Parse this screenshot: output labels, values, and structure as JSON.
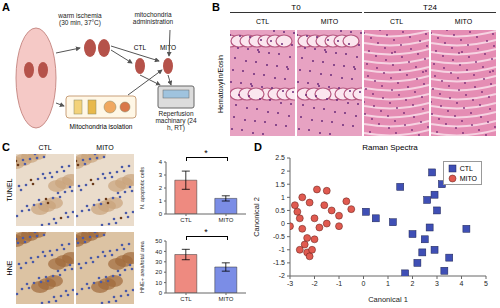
{
  "panels": [
    "A",
    "B",
    "C",
    "D"
  ],
  "diagram": {
    "ischemia": "warm ischemia (30 min, 37°C)",
    "administration": "mitochondria administration",
    "groups": [
      "CTL",
      "MITO"
    ],
    "perfusion": "Reperfusion machinary (24 h, RT)",
    "isolation": "Mitochondria isolation"
  },
  "histology": {
    "stain": "Hematoxylin/Eosin",
    "timepoints": [
      "T0",
      "T24"
    ],
    "groups": [
      "CTL",
      "MITO"
    ]
  },
  "staining": {
    "columns": [
      "CTL",
      "MITO"
    ],
    "rows": [
      "TUNEL",
      "HNE"
    ]
  },
  "chart_data": [
    {
      "type": "bar",
      "categories": [
        "CTL",
        "MITO"
      ],
      "values": [
        2.6,
        1.2
      ],
      "errors": [
        0.7,
        0.2
      ],
      "colors": [
        "#ee8a80",
        "#7b8de6"
      ],
      "ylabel": "N. apoptotic cells",
      "ylim": [
        0,
        4
      ],
      "yticks": [
        0,
        1,
        2,
        3,
        4
      ],
      "annotation": "*"
    },
    {
      "type": "bar",
      "categories": [
        "CTL",
        "MITO"
      ],
      "values": [
        37,
        25
      ],
      "errors": [
        5,
        4
      ],
      "colors": [
        "#ee8a80",
        "#7b8de6"
      ],
      "ylabel": "HNE+ area/total area",
      "ylim": [
        0,
        50
      ],
      "yticks": [
        0,
        10,
        20,
        30,
        40,
        50
      ],
      "annotation": "*"
    },
    {
      "type": "scatter",
      "title": "Raman Spectra",
      "xlabel": "Canonical 1",
      "ylabel": "Canonical 2",
      "xlim": [
        -3,
        5
      ],
      "xticks": [
        -3,
        -2,
        -1,
        0,
        1,
        2,
        3,
        4,
        5
      ],
      "ylim": [
        -2,
        2.5
      ],
      "yticks": [
        -2,
        -1.5,
        -1,
        -0.5,
        0,
        0.5,
        1,
        1.5,
        2,
        2.5
      ],
      "legend": "upper right",
      "series": [
        {
          "name": "CTL",
          "color": "#3f4fb5",
          "marker": "square",
          "x": [
            0.1,
            0.5,
            1.2,
            1.5,
            1.7,
            2.0,
            2.2,
            2.5,
            2.6,
            2.7,
            2.8,
            2.9,
            3.0,
            3.2,
            3.5,
            4.2,
            2.4,
            3.3,
            2.9
          ],
          "values": [
            0.45,
            0.2,
            0.05,
            1.4,
            -1.9,
            -0.4,
            -1.5,
            -0.6,
            0.9,
            -0.15,
            1.95,
            -1.0,
            0.5,
            1.5,
            -1.3,
            -0.2,
            -1.1,
            -1.8,
            1.1
          ]
        },
        {
          "name": "MITO",
          "color": "#e05a50",
          "marker": "circle",
          "x": [
            -3.0,
            -2.8,
            -2.7,
            -2.6,
            -2.5,
            -2.4,
            -2.3,
            -2.3,
            -2.2,
            -2.1,
            -2.0,
            -2.5,
            -2.2,
            -1.9,
            -1.5,
            -1.6,
            -1.3,
            -1.0,
            -0.7,
            -0.5,
            -2.0,
            -1.8,
            -2.6,
            -1.0,
            -1.5
          ],
          "values": [
            -0.1,
            0.7,
            0.45,
            0.2,
            -0.2,
            -0.8,
            -0.55,
            -1.1,
            -1.25,
            -1.0,
            -0.6,
            1.0,
            0.8,
            1.3,
            1.25,
            0.7,
            0.5,
            -0.1,
            0.85,
            0.55,
            0.2,
            -0.15,
            -1.0,
            0.3,
            0.0
          ]
        }
      ]
    }
  ]
}
